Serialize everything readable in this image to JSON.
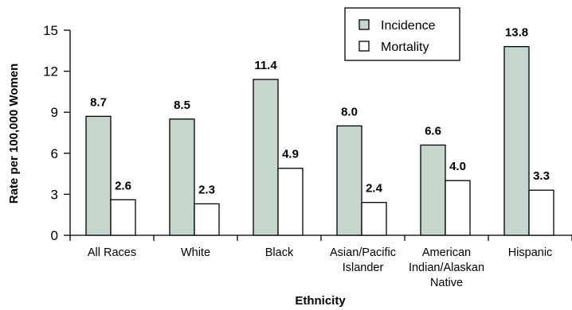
{
  "chart_data": {
    "type": "bar",
    "xlabel": "Ethnicity",
    "ylabel": "Rate per 100,000 Women",
    "ylim": [
      0,
      15
    ],
    "yticks": [
      "0",
      "3",
      "6",
      "9",
      "12",
      "15"
    ],
    "categories": [
      [
        "All Races"
      ],
      [
        "White"
      ],
      [
        "Black"
      ],
      [
        "Asian/Pacific",
        "Islander"
      ],
      [
        "American",
        "Indian/Alaskan",
        "Native"
      ],
      [
        "Hispanic"
      ]
    ],
    "series": [
      {
        "name": "Incidence",
        "values": [
          8.7,
          8.5,
          11.4,
          8.0,
          6.6,
          13.8
        ],
        "labels": [
          "8.7",
          "8.5",
          "11.4",
          "8.0",
          "6.6",
          "13.8"
        ]
      },
      {
        "name": "Mortality",
        "values": [
          2.6,
          2.3,
          4.9,
          2.4,
          4.0,
          3.3
        ],
        "labels": [
          "2.6",
          "2.3",
          "4.9",
          "2.4",
          "4.0",
          "3.3"
        ]
      }
    ],
    "legend_position": "top-right",
    "colors": {
      "Incidence": "#c5d6cc",
      "Mortality": "#ffffff",
      "axis_title": "#1b7bb7",
      "stroke": "#000000"
    },
    "grid": false
  }
}
